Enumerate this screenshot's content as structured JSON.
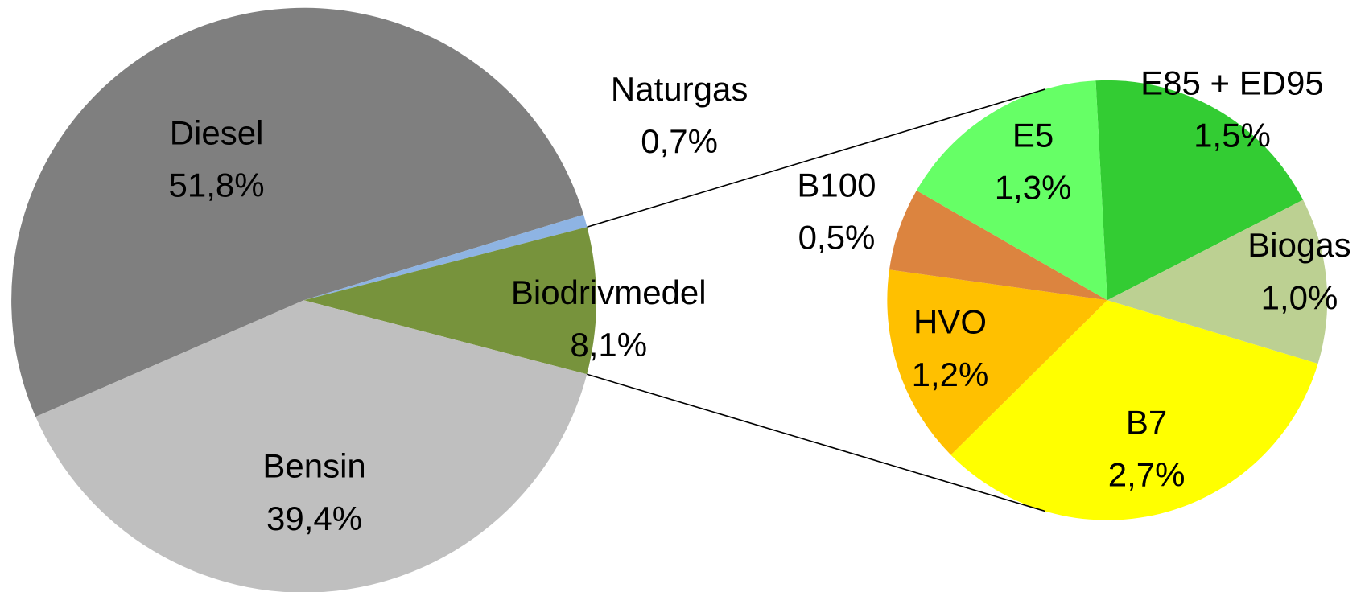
{
  "chart_data": [
    {
      "type": "pie",
      "categories": [
        "Diesel",
        "Naturgas",
        "Biodrivmedel",
        "Bensin"
      ],
      "values": [
        51.8,
        0.7,
        8.1,
        39.4
      ],
      "value_labels": [
        "51,8%",
        "0,7%",
        "8,1%",
        "39,4%"
      ],
      "colors": [
        "#7f7f7f",
        "#8eb4e3",
        "#77933c",
        "#bfbfbf"
      ]
    },
    {
      "type": "pie",
      "categories": [
        "E85 + ED95",
        "Biogas",
        "B7",
        "HVO",
        "B100",
        "E5"
      ],
      "values": [
        1.5,
        1.0,
        2.7,
        1.2,
        0.5,
        1.3
      ],
      "value_labels": [
        "1,5%",
        "1,0%",
        "2,7%",
        "1,2%",
        "0,5%",
        "1,3%"
      ],
      "colors": [
        "#33cc33",
        "#bcd092",
        "#ffff00",
        "#ffc000",
        "#dc843f",
        "#66ff66"
      ]
    }
  ]
}
